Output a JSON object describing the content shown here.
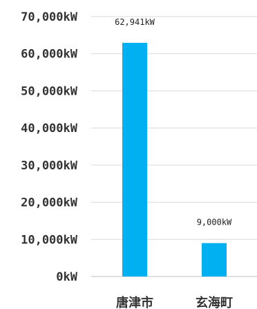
{
  "chart_data": {
    "type": "bar",
    "title": "",
    "xlabel": "",
    "ylabel": "",
    "categories": [
      "唐津市",
      "玄海町"
    ],
    "values": [
      62941,
      9000
    ],
    "data_labels": [
      "62,941kW",
      "9,000kW"
    ],
    "ylim": [
      0,
      70000
    ],
    "ytick_step": 10000,
    "ytick_labels": [
      "0kW",
      "10,000kW",
      "20,000kW",
      "30,000kW",
      "40,000kW",
      "50,000kW",
      "60,000kW",
      "70,000kW"
    ],
    "bar_color": "#00b0f0",
    "grid": true,
    "legend": "none"
  }
}
